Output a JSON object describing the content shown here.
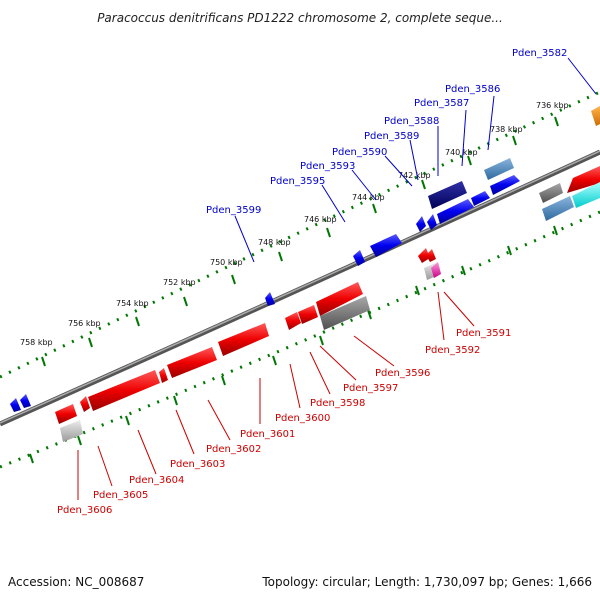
{
  "title": "Paracoccus denitrificans PD1222 chromosome 2, complete seque...",
  "footer": {
    "accession": "Accession: NC_008687",
    "topology": "Topology: circular; Length: 1,730,097 bp; Genes: 1,666"
  },
  "ticks": [
    "736 kbp",
    "738 kbp",
    "740 kbp",
    "742 kbp",
    "744 kbp",
    "746 kbp",
    "748 kbp",
    "750 kbp",
    "752 kbp",
    "754 kbp",
    "756 kbp",
    "758 kbp"
  ],
  "genes_top": [
    "Pden_3582",
    "Pden_3586",
    "Pden_3587",
    "Pden_3588",
    "Pden_3589",
    "Pden_3590",
    "Pden_3593",
    "Pden_3595",
    "Pden_3599"
  ],
  "genes_bottom": [
    "Pden_3591",
    "Pden_3592",
    "Pden_3596",
    "Pden_3597",
    "Pden_3598",
    "Pden_3600",
    "Pden_3601",
    "Pden_3602",
    "Pden_3603",
    "Pden_3604",
    "Pden_3605",
    "Pden_3606"
  ],
  "colors": {
    "forward": "#0000ee",
    "reverse": "#ee0000",
    "backbone": "#777777",
    "ticks": "#007700"
  }
}
